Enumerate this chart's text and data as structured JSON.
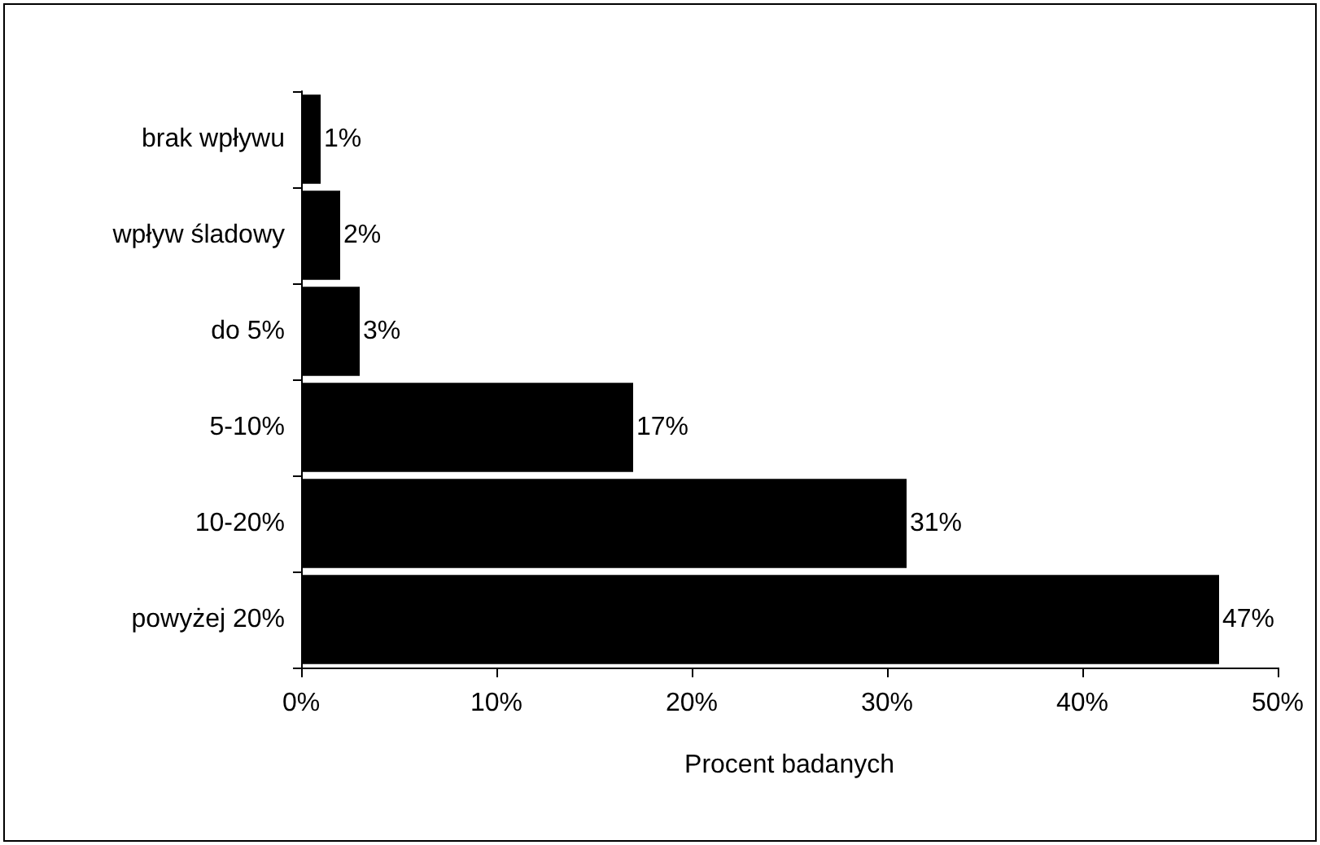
{
  "chart_data": {
    "type": "bar",
    "orientation": "horizontal",
    "categories": [
      "brak wpływu",
      "wpływ śladowy",
      "do 5%",
      "5-10%",
      "10-20%",
      "powyżej 20%"
    ],
    "values": [
      1,
      2,
      3,
      17,
      31,
      47
    ],
    "value_labels": [
      "1%",
      "2%",
      "3%",
      "17%",
      "31%",
      "47%"
    ],
    "color": "#000000",
    "xlabel": "Procent badanych",
    "xlim": [
      0,
      50
    ],
    "xticks": [
      {
        "value": 0,
        "label": "0%"
      },
      {
        "value": 10,
        "label": "10%"
      },
      {
        "value": 20,
        "label": "20%"
      },
      {
        "value": 30,
        "label": "30%"
      },
      {
        "value": 40,
        "label": "40%"
      },
      {
        "value": 50,
        "label": "50%"
      }
    ],
    "grid": false
  }
}
